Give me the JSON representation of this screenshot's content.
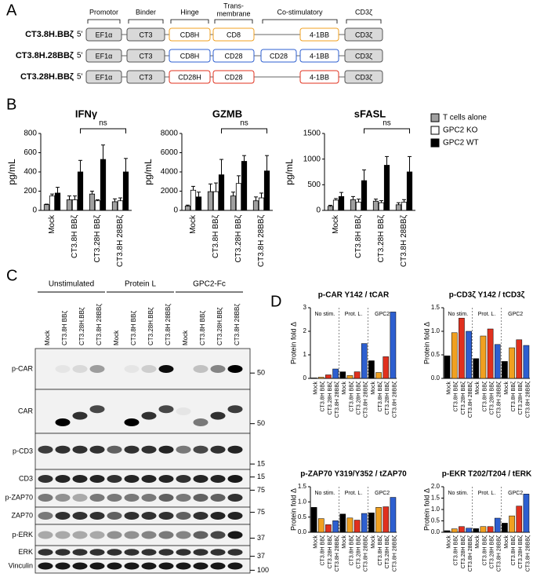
{
  "panel_labels": [
    "A",
    "B",
    "C",
    "D"
  ],
  "construct_diagram": {
    "headers": [
      [
        "Promotor"
      ],
      [
        "Binder"
      ],
      [
        "Hinge"
      ],
      [
        "Trans-",
        "membrane"
      ],
      [
        "Co-stimulatory"
      ],
      [
        "CD3ζ"
      ]
    ],
    "prime": "5'",
    "constructs": [
      {
        "name": "CT3.8H.BBζ",
        "color": "#f0a020",
        "elements": [
          "EF1α",
          "CT3",
          "CD8H",
          "CD8",
          null,
          "4-1BB",
          "CD3ζ"
        ]
      },
      {
        "name": "CT3.8H.28BBζ",
        "color": "#2d5fd0",
        "elements": [
          "EF1α",
          "CT3",
          "CD8H",
          "CD28",
          "CD28",
          "4-1BB",
          "CD3ζ"
        ]
      },
      {
        "name": "CT3.28H.BBζ",
        "color": "#e0301e",
        "elements": [
          "EF1α",
          "CT3",
          "CD28H",
          "CD28",
          null,
          "4-1BB",
          "CD3ζ"
        ]
      }
    ]
  },
  "chart_data": [
    {
      "type": "bar",
      "title": "IFNγ",
      "y_label": "pg/mL",
      "annotation": "ns",
      "categories": [
        "Mock",
        "CT3.8H BBζ",
        "CT3.28H BBζ",
        "CT3.8H 28BBζ"
      ],
      "ylim": [
        0,
        800
      ],
      "yticks": [
        0,
        200,
        400,
        600,
        800
      ],
      "series": [
        {
          "color": "#a0a0a0",
          "values": [
            60,
            110,
            170,
            90
          ],
          "errors": [
            5,
            40,
            30,
            30
          ]
        },
        {
          "color": "#ffffff",
          "values": [
            150,
            110,
            100,
            100
          ],
          "errors": [
            20,
            40,
            10,
            30
          ]
        },
        {
          "color": "#000000",
          "values": [
            180,
            400,
            530,
            400
          ],
          "errors": [
            60,
            120,
            150,
            140
          ]
        }
      ]
    },
    {
      "type": "bar",
      "title": "GZMB",
      "y_label": "pg/mL",
      "annotation": "ns",
      "categories": [
        "Mock",
        "CT3.8H BBζ",
        "CT3.28H BBζ",
        "CT3.8H 28BBζ"
      ],
      "ylim": [
        0,
        8000
      ],
      "yticks": [
        0,
        2000,
        4000,
        6000,
        8000
      ],
      "series": [
        {
          "color": "#a0a0a0",
          "values": [
            450,
            1950,
            1500,
            1000
          ],
          "errors": [
            100,
            800,
            400,
            400
          ]
        },
        {
          "color": "#ffffff",
          "values": [
            2100,
            1950,
            2800,
            1300
          ],
          "errors": [
            400,
            900,
            800,
            500
          ]
        },
        {
          "color": "#000000",
          "values": [
            1400,
            3700,
            5100,
            4100
          ],
          "errors": [
            500,
            1600,
            600,
            1600
          ]
        }
      ]
    },
    {
      "type": "bar",
      "title": "sFASL",
      "y_label": "pg/mL",
      "annotation": "ns",
      "legend": "right",
      "categories": [
        "Mock",
        "CT3.8H BBζ",
        "CT3.28H BBζ",
        "CT3.8H 28BBζ"
      ],
      "ylim": [
        0,
        1500
      ],
      "yticks": [
        0,
        500,
        1000,
        1500
      ],
      "series": [
        {
          "name": "T cells alone",
          "color": "#a0a0a0",
          "values": [
            80,
            210,
            180,
            110
          ],
          "errors": [
            20,
            60,
            40,
            40
          ]
        },
        {
          "name": "GPC2 KO",
          "color": "#ffffff",
          "values": [
            200,
            160,
            150,
            160
          ],
          "errors": [
            30,
            60,
            40,
            50
          ]
        },
        {
          "name": "GPC2 WT",
          "color": "#000000",
          "values": [
            270,
            580,
            880,
            750
          ],
          "errors": [
            80,
            210,
            170,
            300
          ]
        }
      ]
    },
    {
      "type": "fold",
      "title": "p-CAR Y142 / tCAR",
      "y_label": "Protein fold Δ",
      "sections": [
        "No stim.",
        "Prot. L.",
        "GPC2"
      ],
      "categories": [
        "Mock",
        "CT3.8H BBζ",
        "CT3.28H BBζ",
        "CT3.8H 28BBζ",
        "Mock",
        "CT3.8H BBζ",
        "CT3.28H BBζ",
        "CT3.8H 28BBζ",
        "Mock",
        "CT3.8H BBζ",
        "CT3.28H BBζ",
        "CT3.8H 28BBζ"
      ],
      "colors": [
        "#000000",
        "#f0a020",
        "#e0301e",
        "#2d5fd0",
        "#000000",
        "#f0a020",
        "#e0301e",
        "#2d5fd0",
        "#000000",
        "#f0a020",
        "#e0301e",
        "#2d5fd0"
      ],
      "values": [
        0.02,
        0.05,
        0.15,
        0.4,
        0.28,
        0.12,
        0.28,
        1.48,
        0.75,
        0.25,
        0.92,
        2.82
      ],
      "ylim": [
        0,
        3
      ],
      "yticks": [
        0,
        1,
        2,
        3
      ]
    },
    {
      "type": "fold",
      "title": "p-CD3ζ Y142 / tCD3ζ",
      "y_label": "Protein fold Δ",
      "sections": [
        "No stim.",
        "Prot. L.",
        "GPC2"
      ],
      "categories": [
        "Mock",
        "CT3.8H BBζ",
        "CT3.28H BBζ",
        "CT3.8H 28BBζ",
        "Mock",
        "CT3.8H BBζ",
        "CT3.28H BBζ",
        "CT3.8H 28BBζ",
        "Mock",
        "CT3.8H BBζ",
        "CT3.28H BBζ",
        "CT3.8H 28BBζ"
      ],
      "colors": [
        "#000000",
        "#f0a020",
        "#e0301e",
        "#2d5fd0",
        "#000000",
        "#f0a020",
        "#e0301e",
        "#2d5fd0",
        "#000000",
        "#f0a020",
        "#e0301e",
        "#2d5fd0"
      ],
      "values": [
        0.48,
        0.97,
        1.28,
        1.0,
        0.42,
        0.9,
        1.05,
        0.72,
        0.36,
        0.65,
        0.82,
        0.7
      ],
      "ylim": [
        0,
        1.5
      ],
      "yticks": [
        {
          "value": 0,
          "label": "0.0"
        },
        0.5,
        {
          "value": 1,
          "label": "1.0"
        },
        1.5
      ]
    },
    {
      "type": "fold",
      "title": "p-ZAP70 Y319/Y352 / tZAP70",
      "y_label": "Protein fold Δ",
      "sections": [
        "No stim.",
        "Prot. L.",
        "GPC2"
      ],
      "categories": [
        "Mock",
        "CT3.8H BBζ",
        "CT3.28H BBζ",
        "CT3.8H 28BBζ",
        "Mock",
        "CT3.8H BBζ",
        "CT3.28H BBζ",
        "CT3.8H 28BBζ",
        "Mock",
        "CT3.8H BBζ",
        "CT3.28H BBζ",
        "CT3.8H 28BBζ"
      ],
      "colors": [
        "#000000",
        "#f0a020",
        "#e0301e",
        "#2d5fd0",
        "#000000",
        "#f0a020",
        "#e0301e",
        "#2d5fd0",
        "#000000",
        "#f0a020",
        "#e0301e",
        "#2d5fd0"
      ],
      "values": [
        0.82,
        0.45,
        0.25,
        0.38,
        0.6,
        0.47,
        0.4,
        0.62,
        0.64,
        0.82,
        0.84,
        1.15
      ],
      "ylim": [
        0,
        1.5
      ],
      "yticks": [
        {
          "value": 0,
          "label": "0.0"
        },
        0.5,
        {
          "value": 1,
          "label": "1.0"
        },
        1.5
      ]
    },
    {
      "type": "fold",
      "title": "p-EKR T202/T204 / tERK",
      "y_label": "Protein fold Δ",
      "sections": [
        "No stim.",
        "Prot. L.",
        "GPC2"
      ],
      "categories": [
        "Mock",
        "CT3.8H BBζ",
        "CT3.28H BBζ",
        "CT3.8H 28BBζ",
        "Mock",
        "CT3.8H BBζ",
        "CT3.28H BBζ",
        "CT3.8H 28BBζ",
        "Mock",
        "CT3.8H BBζ",
        "CT3.28H BBζ",
        "CT3.8H 28BBζ"
      ],
      "colors": [
        "#000000",
        "#f0a020",
        "#e0301e",
        "#2d5fd0",
        "#000000",
        "#f0a020",
        "#e0301e",
        "#2d5fd0",
        "#000000",
        "#f0a020",
        "#e0301e",
        "#2d5fd0"
      ],
      "values": [
        0.07,
        0.15,
        0.25,
        0.18,
        0.16,
        0.25,
        0.25,
        0.62,
        0.4,
        0.72,
        1.15,
        1.68
      ],
      "ylim": [
        0,
        2
      ],
      "yticks": [
        {
          "value": 0,
          "label": "0.0"
        },
        0.5,
        {
          "value": 1,
          "label": "1.0"
        },
        1.5,
        {
          "value": 2,
          "label": "2.0"
        }
      ]
    }
  ],
  "western_blot": {
    "groups": [
      "Unstimulated",
      "Protein L",
      "GPC2-Fc"
    ],
    "lanes": [
      {
        "label": "Mock",
        "color": "#000000"
      },
      {
        "label": "CT3.8H BBζ",
        "color": "#f0a020"
      },
      {
        "label": "CT3.28H.BBζ",
        "color": "#e0301e"
      },
      {
        "label": "CT3.8H 28BBζ",
        "color": "#2d5fd0"
      },
      {
        "label": "Mock",
        "color": "#000000"
      },
      {
        "label": "CT3.8H BBζ",
        "color": "#f0a020"
      },
      {
        "label": "CT3.28H.BBζ",
        "color": "#e0301e"
      },
      {
        "label": "CT3.8H 28BBζ",
        "color": "#2d5fd0"
      },
      {
        "label": "Mock",
        "color": "#000000"
      },
      {
        "label": "CT3.8H BBζ",
        "color": "#f0a020"
      },
      {
        "label": "CT3.28H.BBζ",
        "color": "#e0301e"
      },
      {
        "label": "CT3.8H 28BBζ",
        "color": "#2d5fd0"
      }
    ],
    "rows": [
      {
        "label": "p-CAR",
        "marker": 50
      },
      {
        "label": "CAR",
        "marker": 50
      },
      {
        "label": "p-CD3",
        "marker": 15
      },
      {
        "label": "CD3",
        "marker": 15
      },
      {
        "label": "p-ZAP70",
        "marker": 75
      },
      {
        "label": "ZAP70",
        "marker": 75
      },
      {
        "label": "p-ERK",
        "marker": 37
      },
      {
        "label": "ERK",
        "marker": 37
      },
      {
        "label": "Vinculin",
        "marker": 100
      }
    ]
  }
}
